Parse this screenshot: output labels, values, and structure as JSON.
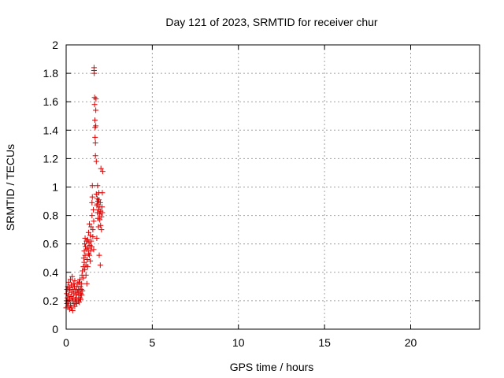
{
  "chart_data": {
    "type": "scatter",
    "title": "Day 121 of 2023, SRMTID for receiver chur",
    "xlabel": "GPS time / hours",
    "ylabel": "SRMTID / TECUs",
    "xlim": [
      0,
      24
    ],
    "ylim": [
      0,
      2
    ],
    "xticks": [
      0,
      5,
      10,
      15,
      20
    ],
    "xtick_labels": [
      "0",
      "5",
      "10",
      "15",
      "20"
    ],
    "yticks": [
      0,
      0.2,
      0.4,
      0.6,
      0.8,
      1,
      1.2,
      1.4,
      1.6,
      1.8,
      2
    ],
    "ytick_labels": [
      "0",
      "0.2",
      "0.4",
      "0.6",
      "0.8",
      "1",
      "1.2",
      "1.4",
      "1.6",
      "1.8",
      "2"
    ],
    "grid": true,
    "marker": "+",
    "marker_color": "#e00000",
    "series": [
      {
        "name": "chur",
        "points": [
          [
            0.0,
            0.15
          ],
          [
            0.02,
            0.2
          ],
          [
            0.03,
            0.25
          ],
          [
            0.05,
            0.28
          ],
          [
            0.05,
            0.18
          ],
          [
            0.08,
            0.22
          ],
          [
            0.1,
            0.3
          ],
          [
            0.1,
            0.16
          ],
          [
            0.12,
            0.19
          ],
          [
            0.15,
            0.24
          ],
          [
            0.15,
            0.33
          ],
          [
            0.18,
            0.27
          ],
          [
            0.2,
            0.14
          ],
          [
            0.2,
            0.21
          ],
          [
            0.22,
            0.29
          ],
          [
            0.25,
            0.17
          ],
          [
            0.25,
            0.35
          ],
          [
            0.28,
            0.23
          ],
          [
            0.3,
            0.31
          ],
          [
            0.3,
            0.15
          ],
          [
            0.32,
            0.26
          ],
          [
            0.35,
            0.2
          ],
          [
            0.35,
            0.37
          ],
          [
            0.38,
            0.13
          ],
          [
            0.4,
            0.28
          ],
          [
            0.4,
            0.22
          ],
          [
            0.42,
            0.32
          ],
          [
            0.45,
            0.18
          ],
          [
            0.45,
            0.25
          ],
          [
            0.48,
            0.3
          ],
          [
            0.5,
            0.16
          ],
          [
            0.5,
            0.34
          ],
          [
            0.52,
            0.21
          ],
          [
            0.55,
            0.27
          ],
          [
            0.55,
            0.19
          ],
          [
            0.58,
            0.24
          ],
          [
            0.6,
            0.3
          ],
          [
            0.6,
            0.22
          ],
          [
            0.62,
            0.18
          ],
          [
            0.65,
            0.26
          ],
          [
            0.68,
            0.32
          ],
          [
            0.7,
            0.2
          ],
          [
            0.7,
            0.28
          ],
          [
            0.72,
            0.24
          ],
          [
            0.75,
            0.33
          ],
          [
            0.75,
            0.19
          ],
          [
            0.78,
            0.27
          ],
          [
            0.8,
            0.22
          ],
          [
            0.8,
            0.35
          ],
          [
            0.82,
            0.3
          ],
          [
            0.85,
            0.25
          ],
          [
            0.85,
            0.21
          ],
          [
            0.88,
            0.28
          ],
          [
            0.9,
            0.32
          ],
          [
            0.9,
            0.24
          ],
          [
            0.92,
            0.38
          ],
          [
            0.95,
            0.27
          ],
          [
            0.95,
            0.41
          ],
          [
            1.0,
            0.36
          ],
          [
            1.0,
            0.44
          ],
          [
            1.02,
            0.5
          ],
          [
            1.05,
            0.47
          ],
          [
            1.05,
            0.55
          ],
          [
            1.08,
            0.6
          ],
          [
            1.08,
            0.42
          ],
          [
            1.1,
            0.52
          ],
          [
            1.1,
            0.64
          ],
          [
            1.12,
            0.58
          ],
          [
            1.15,
            0.45
          ],
          [
            1.15,
            0.38
          ],
          [
            1.18,
            0.62
          ],
          [
            1.2,
            0.56
          ],
          [
            1.2,
            0.32
          ],
          [
            1.22,
            0.49
          ],
          [
            1.25,
            0.63
          ],
          [
            1.25,
            0.44
          ],
          [
            1.28,
            0.57
          ],
          [
            1.3,
            0.53
          ],
          [
            1.3,
            0.68
          ],
          [
            1.32,
            0.61
          ],
          [
            1.35,
            0.74
          ],
          [
            1.35,
            0.52
          ],
          [
            1.38,
            0.59
          ],
          [
            1.4,
            0.66
          ],
          [
            1.4,
            0.48
          ],
          [
            1.42,
            0.55
          ],
          [
            1.45,
            0.72
          ],
          [
            1.45,
            0.62
          ],
          [
            1.48,
            0.58
          ],
          [
            1.5,
            0.89
          ],
          [
            1.5,
            0.8
          ],
          [
            1.52,
            0.93
          ],
          [
            1.52,
            1.01
          ],
          [
            1.55,
            0.7
          ],
          [
            1.55,
            0.65
          ],
          [
            1.58,
            0.84
          ],
          [
            1.6,
            0.76
          ],
          [
            1.6,
            0.56
          ],
          [
            1.62,
            1.82
          ],
          [
            1.62,
            1.84
          ],
          [
            1.63,
            1.8
          ],
          [
            1.65,
            1.63
          ],
          [
            1.65,
            1.58
          ],
          [
            1.67,
            1.47
          ],
          [
            1.68,
            1.42
          ],
          [
            1.68,
            1.35
          ],
          [
            1.7,
            1.31
          ],
          [
            1.7,
            1.22
          ],
          [
            1.72,
            1.43
          ],
          [
            1.72,
            1.54
          ],
          [
            1.73,
            1.62
          ],
          [
            1.75,
            1.18
          ],
          [
            1.75,
            0.95
          ],
          [
            1.78,
            0.87
          ],
          [
            1.78,
            0.64
          ],
          [
            1.8,
            0.92
          ],
          [
            1.8,
            0.88
          ],
          [
            1.82,
            0.82
          ],
          [
            1.82,
            1.01
          ],
          [
            1.85,
            0.9
          ],
          [
            1.85,
            0.78
          ],
          [
            1.88,
            0.84
          ],
          [
            1.88,
            0.72
          ],
          [
            1.9,
            0.96
          ],
          [
            1.9,
            0.91
          ],
          [
            1.92,
            0.86
          ],
          [
            1.92,
            0.52
          ],
          [
            1.95,
            0.81
          ],
          [
            1.95,
            0.77
          ],
          [
            1.98,
            0.89
          ],
          [
            1.98,
            0.45
          ],
          [
            2.0,
            0.83
          ],
          [
            2.0,
            0.73
          ],
          [
            2.02,
            1.13
          ],
          [
            2.05,
            0.79
          ],
          [
            2.05,
            0.7
          ],
          [
            2.08,
            0.86
          ],
          [
            2.1,
            0.96
          ],
          [
            2.1,
            0.82
          ],
          [
            2.12,
            1.11
          ]
        ]
      }
    ]
  }
}
